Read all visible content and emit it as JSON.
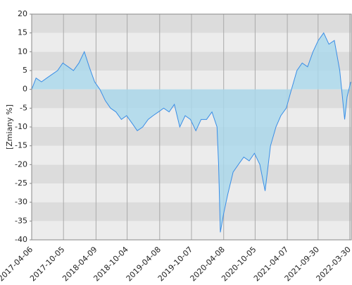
{
  "chart_data": {
    "type": "area",
    "y_label": "[Zmiany %]",
    "x": [
      "2017-04-06",
      "2017-05-01",
      "2017-06-01",
      "2017-07-01",
      "2017-08-01",
      "2017-09-01",
      "2017-10-01",
      "2017-11-01",
      "2017-12-01",
      "2018-01-01",
      "2018-02-01",
      "2018-03-01",
      "2018-04-01",
      "2018-05-01",
      "2018-06-01",
      "2018-07-01",
      "2018-08-01",
      "2018-09-01",
      "2018-10-01",
      "2018-11-01",
      "2018-12-01",
      "2019-01-01",
      "2019-02-01",
      "2019-03-01",
      "2019-04-01",
      "2019-05-01",
      "2019-06-01",
      "2019-07-01",
      "2019-08-01",
      "2019-09-01",
      "2019-10-01",
      "2019-11-01",
      "2019-12-01",
      "2020-01-01",
      "2020-02-01",
      "2020-03-01",
      "2020-03-10",
      "2020-03-20",
      "2020-04-08",
      "2020-05-01",
      "2020-06-01",
      "2020-07-01",
      "2020-08-01",
      "2020-09-01",
      "2020-10-01",
      "2020-11-01",
      "2020-12-01",
      "2021-01-01",
      "2021-02-01",
      "2021-03-01",
      "2021-04-01",
      "2021-05-01",
      "2021-06-01",
      "2021-07-01",
      "2021-08-01",
      "2021-09-01",
      "2021-10-01",
      "2021-11-01",
      "2021-12-01",
      "2022-01-01",
      "2022-02-01",
      "2022-03-01",
      "2022-03-15",
      "2022-04-05"
    ],
    "values": [
      0,
      3,
      2,
      3,
      4,
      5,
      7,
      6,
      5,
      7,
      10,
      6,
      2,
      0,
      -3,
      -5,
      -6,
      -8,
      -7,
      -9,
      -11,
      -10,
      -8,
      -7,
      -6,
      -5,
      -6,
      -4,
      -10,
      -7,
      -8,
      -11,
      -8,
      -8,
      -6,
      -10,
      -20,
      -38,
      -33,
      -28,
      -22,
      -20,
      -18,
      -19,
      -17,
      -20,
      -27,
      -15,
      -10,
      -7,
      -5,
      0,
      5,
      7,
      6,
      10,
      13,
      15,
      12,
      13,
      5,
      -8,
      -2,
      2
    ],
    "color": "#3a8ee6",
    "fill_color": "#a9d8ec",
    "xlim": [
      "2017-04-06",
      "2022-04-08"
    ],
    "xticks": [
      "2017-04-06",
      "2017-10-05",
      "2018-04-09",
      "2018-10-04",
      "2019-04-08",
      "2019-10-07",
      "2020-04-08",
      "2020-10-05",
      "2021-04-07",
      "2021-09-30",
      "2022-03-30"
    ],
    "ylim": [
      -40,
      20
    ],
    "yticks": [
      -40,
      -35,
      -30,
      -25,
      -20,
      -15,
      -10,
      -5,
      0,
      5,
      10,
      15,
      20
    ],
    "grid": true
  }
}
